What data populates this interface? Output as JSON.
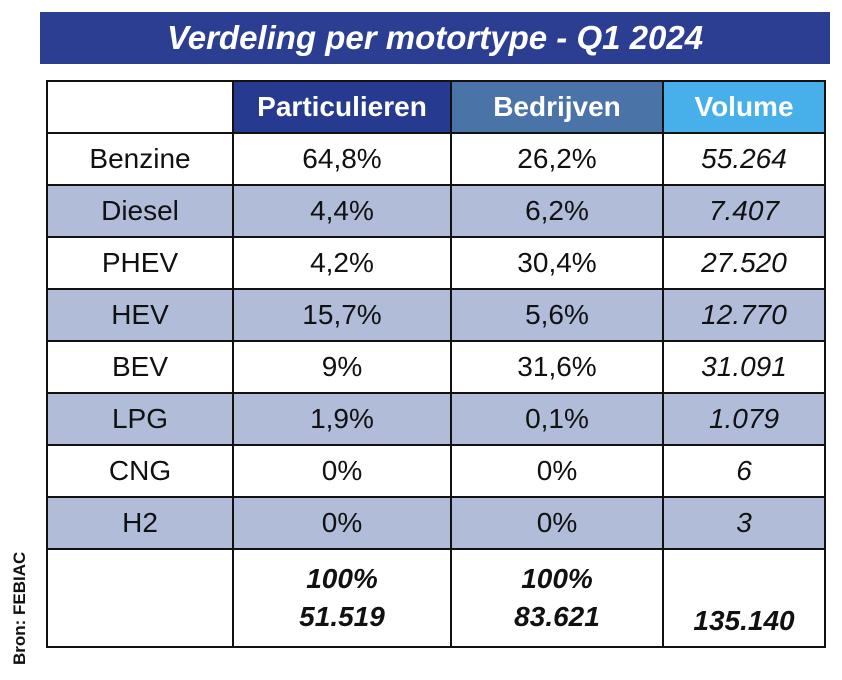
{
  "title": "Verdeling per motortype - Q1 2024",
  "source": "Bron: FEBIAC",
  "chart_data": {
    "type": "table",
    "title": "Verdeling per motortype - Q1 2024",
    "columns": [
      "",
      "Particulieren",
      "Bedrijven",
      "Volume"
    ],
    "header_colors": [
      "#263a8f",
      "#4a73a8",
      "#47b0ea"
    ],
    "rows": [
      {
        "label": "Benzine",
        "particulieren": "64,8%",
        "bedrijven": "26,2%",
        "volume": "55.264"
      },
      {
        "label": "Diesel",
        "particulieren": "4,4%",
        "bedrijven": "6,2%",
        "volume": "7.407"
      },
      {
        "label": "PHEV",
        "particulieren": "4,2%",
        "bedrijven": "30,4%",
        "volume": "27.520"
      },
      {
        "label": "HEV",
        "particulieren": "15,7%",
        "bedrijven": "5,6%",
        "volume": "12.770"
      },
      {
        "label": "BEV",
        "particulieren": "9%",
        "bedrijven": "31,6%",
        "volume": "31.091"
      },
      {
        "label": "LPG",
        "particulieren": "1,9%",
        "bedrijven": "0,1%",
        "volume": "1.079"
      },
      {
        "label": "CNG",
        "particulieren": "0%",
        "bedrijven": "0%",
        "volume": "6"
      },
      {
        "label": "H2",
        "particulieren": "0%",
        "bedrijven": "0%",
        "volume": "3"
      }
    ],
    "totals": {
      "particulieren_pct": "100%",
      "particulieren_count": "51.519",
      "bedrijven_pct": "100%",
      "bedrijven_count": "83.621",
      "volume": "135.140"
    }
  }
}
